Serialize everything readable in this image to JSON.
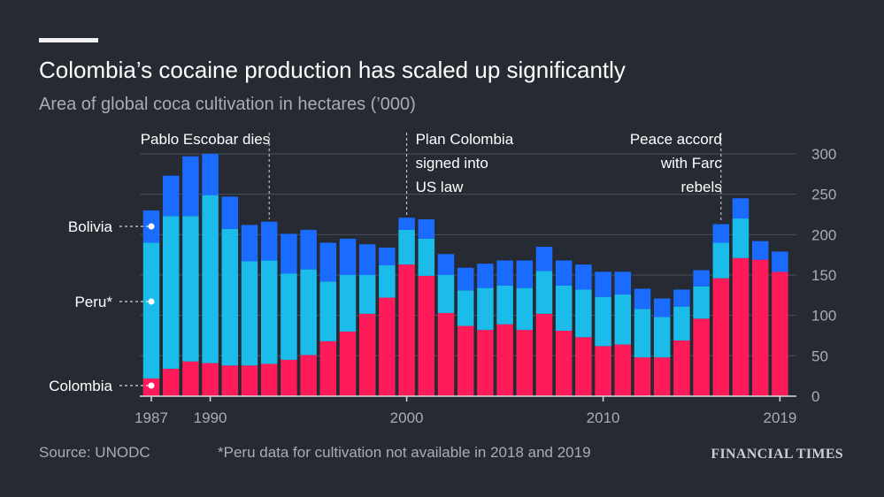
{
  "header": {
    "title": "Colombia’s cocaine production has scaled up significantly",
    "subtitle": "Area of global coca cultivation in hectares (’000)"
  },
  "footer": {
    "source": "Source: UNODC",
    "note": "*Peru data for cultivation not available in 2018 and 2019",
    "brand": "FINANCIAL TIMES"
  },
  "colors": {
    "colombia": "#ff1a59",
    "peru": "#1bbcea",
    "bolivia": "#1a6bff",
    "background": "#262a33",
    "grid": "#4a4f5a",
    "text": "#ffffff",
    "muted": "#a8acb4"
  },
  "chart_data": {
    "type": "bar",
    "stacked": true,
    "title": "Colombia’s cocaine production has scaled up significantly",
    "subtitle": "Area of global coca cultivation in hectares (’000)",
    "ylim": [
      0,
      300
    ],
    "y_ticks": [
      0,
      50,
      100,
      150,
      200,
      250,
      300
    ],
    "x_tick_labels": [
      "1987",
      "1990",
      "2000",
      "2010",
      "2019"
    ],
    "years": [
      1987,
      1988,
      1989,
      1990,
      1991,
      1992,
      1993,
      1994,
      1995,
      1996,
      1997,
      1998,
      1999,
      2000,
      2001,
      2002,
      2003,
      2004,
      2005,
      2006,
      2007,
      2008,
      2009,
      2010,
      2011,
      2012,
      2013,
      2014,
      2015,
      2016,
      2017,
      2018,
      2019
    ],
    "series": [
      {
        "name": "Colombia",
        "values": [
          22,
          34,
          43,
          41,
          38,
          38,
          40,
          45,
          51,
          68,
          80,
          102,
          122,
          163,
          149,
          103,
          87,
          82,
          89,
          82,
          102,
          81,
          73,
          62,
          64,
          48,
          48,
          69,
          96,
          146,
          171,
          169,
          154
        ]
      },
      {
        "name": "Peru",
        "values": [
          168,
          189,
          180,
          208,
          169,
          129,
          128,
          107,
          106,
          74,
          70,
          48,
          40,
          43,
          46,
          47,
          44,
          52,
          48,
          52,
          53,
          56,
          59,
          61,
          62,
          60,
          50,
          42,
          40,
          44,
          49,
          0,
          0
        ]
      },
      {
        "name": "Bolivia",
        "values": [
          40,
          50,
          74,
          51,
          40,
          45,
          48,
          49,
          49,
          48,
          45,
          38,
          22,
          15,
          24,
          26,
          28,
          30,
          31,
          34,
          30,
          31,
          31,
          31,
          28,
          25,
          23,
          21,
          20,
          23,
          25,
          23,
          25
        ]
      }
    ],
    "annotations": [
      {
        "year": 1993,
        "lines": [
          "Pablo Escobar dies"
        ],
        "align": "end"
      },
      {
        "year": 2000,
        "lines": [
          "Plan Colombia",
          "signed into",
          "US law"
        ],
        "align": "start"
      },
      {
        "year": 2016,
        "lines": [
          "Peace accord",
          "with Farc",
          "rebels"
        ],
        "align": "end"
      }
    ],
    "legend": {
      "position": "left-inline",
      "entries": [
        {
          "label": "Bolivia",
          "series": "Bolivia"
        },
        {
          "label": "Peru*",
          "series": "Peru"
        },
        {
          "label": "Colombia",
          "series": "Colombia"
        }
      ]
    }
  }
}
